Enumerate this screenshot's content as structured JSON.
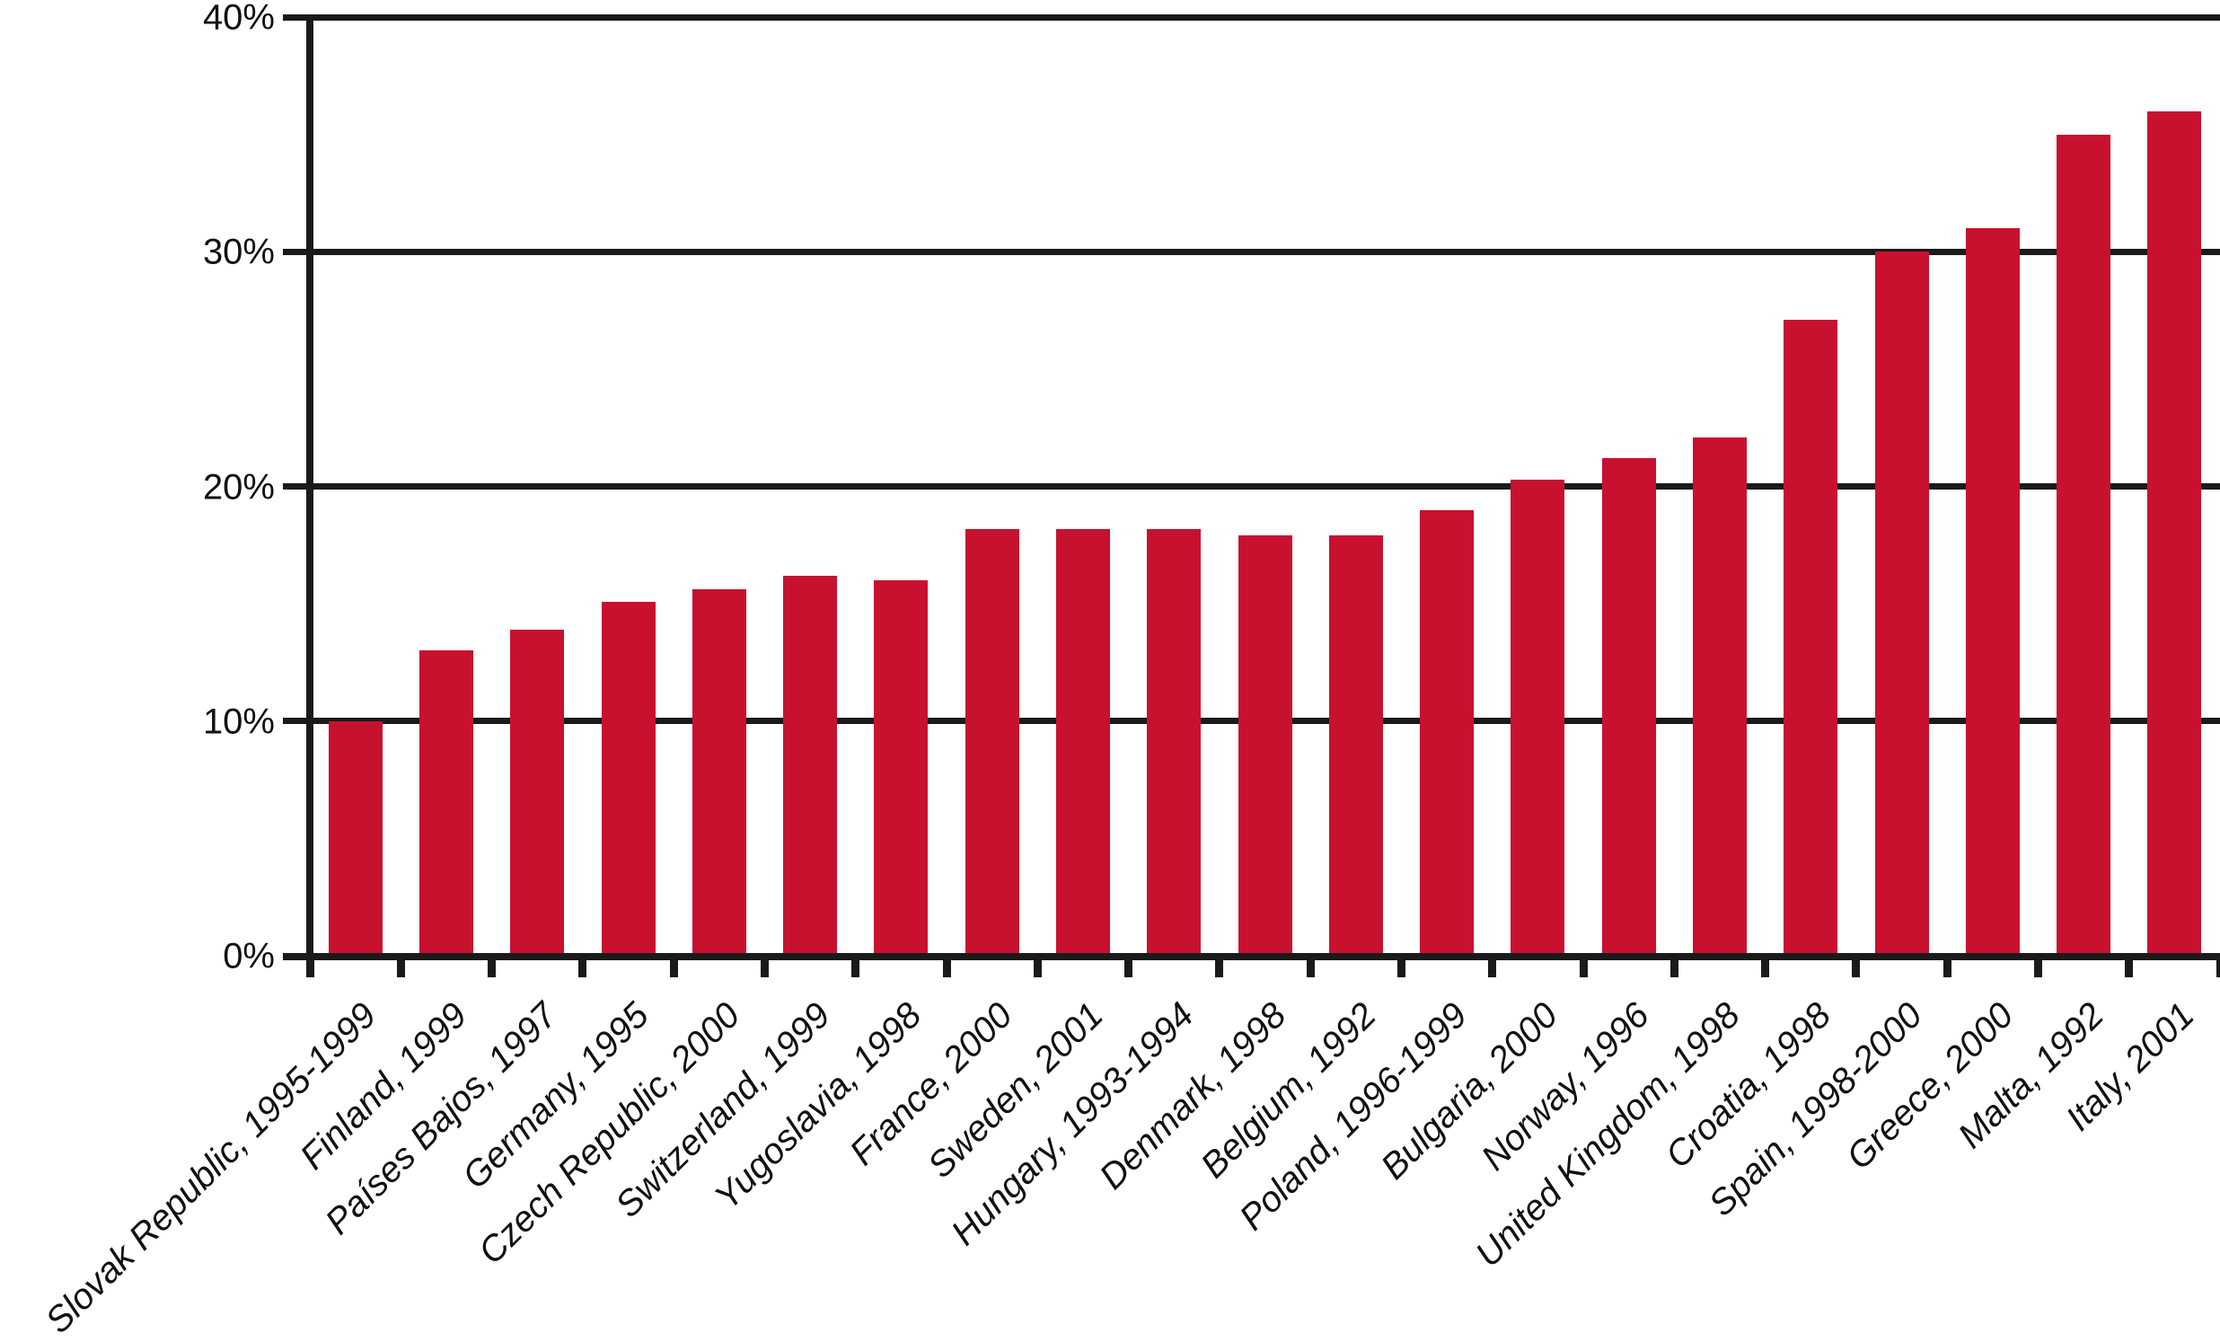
{
  "chart_data": {
    "type": "bar",
    "title": "",
    "xlabel": "",
    "ylabel": "",
    "ylim": [
      0,
      40
    ],
    "grid": true,
    "legend": null,
    "y_ticks": [
      {
        "value": 0,
        "label": "0%"
      },
      {
        "value": 10,
        "label": "10%"
      },
      {
        "value": 20,
        "label": "20%"
      },
      {
        "value": 30,
        "label": "30%"
      },
      {
        "value": 40,
        "label": "40%"
      }
    ],
    "categories": [
      "Slovak Republic, 1995-1999",
      "Finland, 1999",
      "Países Bajos, 1997",
      "Germany, 1995",
      "Czech Republic, 2000",
      "Switzerland, 1999",
      "Yugoslavia, 1998",
      "France, 2000",
      "Sweden, 2001",
      "Hungary, 1993-1994",
      "Denmark, 1998",
      "Belgium, 1992",
      "Poland, 1996-1999",
      "Bulgaria, 2000",
      "Norway, 1996",
      "United Kingdom, 1998",
      "Croatia, 1998",
      "Spain, 1998-2000",
      "Greece, 2000",
      "Malta, 1992",
      "Italy, 2001"
    ],
    "values": [
      10.0,
      13.0,
      13.9,
      15.1,
      15.6,
      16.2,
      16.0,
      18.2,
      18.2,
      18.2,
      17.9,
      17.9,
      19.0,
      20.3,
      21.2,
      22.1,
      27.1,
      30.0,
      31.0,
      35.0,
      36.0
    ],
    "colors": {
      "bar": "#C8112F",
      "axis": "#1a1a1a",
      "text": "#111111",
      "background": "#ffffff"
    }
  }
}
